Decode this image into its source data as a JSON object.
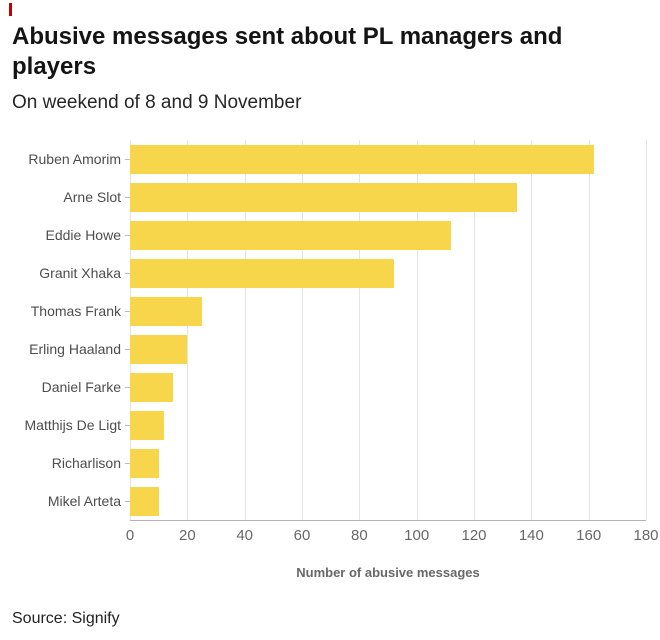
{
  "accent": {
    "red": "#c00000",
    "bar_yellow": "#f8d64b"
  },
  "header": {
    "title": "Abusive messages sent about PL managers and players",
    "subtitle": "On weekend of 8 and 9 November"
  },
  "chart_data": {
    "type": "bar",
    "orientation": "horizontal",
    "title": "Abusive messages sent about PL managers and players",
    "subtitle": "On weekend of 8 and 9 November",
    "categories": [
      "Ruben Amorim",
      "Arne Slot",
      "Eddie Howe",
      "Granit Xhaka",
      "Thomas Frank",
      "Erling Haaland",
      "Daniel Farke",
      "Matthijs De Ligt",
      "Richarlison",
      "Mikel Arteta"
    ],
    "values": [
      162,
      135,
      112,
      92,
      25,
      20,
      15,
      12,
      10,
      10
    ],
    "xlabel": "Number of abusive messages",
    "ylabel": "",
    "xlim": [
      0,
      180
    ],
    "xticks": [
      0,
      20,
      40,
      60,
      80,
      100,
      120,
      140,
      160,
      180
    ],
    "grid": true,
    "legend": "none",
    "bar_color": "#f8d64b"
  },
  "footer": {
    "source": "Source: Signify"
  }
}
